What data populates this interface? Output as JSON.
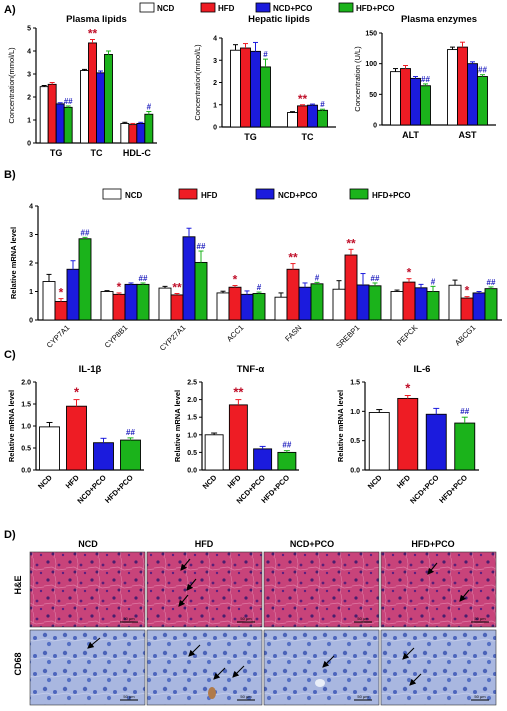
{
  "colors": {
    "NCD": "#ffffff",
    "HFD": "#ee1c24",
    "NCD+PCO": "#1b1bdd",
    "HFD+PCO": "#1bb31b"
  },
  "panel_letters": {
    "A": "A)",
    "B": "B)",
    "C": "C)",
    "D": "D)"
  },
  "legend": [
    "NCD",
    "HFD",
    "NCD+PCO",
    "HFD+PCO"
  ],
  "chart_data": [
    {
      "id": "plasma_lipids",
      "type": "bar",
      "title": "Plasma lipids",
      "ylabel": "Concentration(mmol/L)",
      "categories": [
        "TG",
        "TC",
        "HDL-C"
      ],
      "ylim": [
        0,
        5
      ],
      "yticks": [
        0,
        1,
        2,
        3,
        4,
        5
      ],
      "series": [
        {
          "name": "NCD",
          "values": [
            2.45,
            3.15,
            0.85
          ],
          "errors": [
            0.05,
            0.05,
            0.05
          ]
        },
        {
          "name": "HFD",
          "values": [
            2.55,
            4.35,
            0.8
          ],
          "errors": [
            0.08,
            0.15,
            0.05
          ]
        },
        {
          "name": "NCD+PCO",
          "values": [
            1.7,
            3.05,
            0.85
          ],
          "errors": [
            0.05,
            0.08,
            0.05
          ]
        },
        {
          "name": "HFD+PCO",
          "values": [
            1.55,
            3.85,
            1.25
          ],
          "errors": [
            0.06,
            0.15,
            0.12
          ]
        }
      ],
      "annotations": [
        {
          "category": 0,
          "series": 3,
          "text": "##"
        },
        {
          "category": 1,
          "series": 1,
          "text": "**"
        },
        {
          "category": 2,
          "series": 3,
          "text": "#"
        }
      ]
    },
    {
      "id": "hepatic_lipids",
      "type": "bar",
      "title": "Hepatic lipids",
      "ylabel": "Concentration(mmol/L)",
      "categories": [
        "TG",
        "TC"
      ],
      "ylim": [
        0,
        4
      ],
      "yticks": [
        0,
        1,
        2,
        3,
        4
      ],
      "series": [
        {
          "name": "NCD",
          "values": [
            3.45,
            0.65
          ],
          "errors": [
            0.25,
            0.04
          ]
        },
        {
          "name": "HFD",
          "values": [
            3.55,
            0.95
          ],
          "errors": [
            0.2,
            0.05
          ]
        },
        {
          "name": "NCD+PCO",
          "values": [
            3.4,
            0.98
          ],
          "errors": [
            0.4,
            0.05
          ]
        },
        {
          "name": "HFD+PCO",
          "values": [
            2.7,
            0.75
          ],
          "errors": [
            0.35,
            0.05
          ]
        }
      ],
      "annotations": [
        {
          "category": 0,
          "series": 3,
          "text": "#"
        },
        {
          "category": 1,
          "series": 1,
          "text": "**"
        },
        {
          "category": 1,
          "series": 3,
          "text": "#"
        }
      ]
    },
    {
      "id": "plasma_enzymes",
      "type": "bar",
      "title": "Plasma enzymes",
      "ylabel": "Concentration (U/L)",
      "categories": [
        "ALT",
        "AST"
      ],
      "ylim": [
        0,
        150
      ],
      "yticks": [
        0,
        50,
        100,
        150
      ],
      "series": [
        {
          "name": "NCD",
          "values": [
            87,
            123
          ],
          "errors": [
            5,
            4
          ]
        },
        {
          "name": "HFD",
          "values": [
            92,
            127
          ],
          "errors": [
            5,
            8
          ]
        },
        {
          "name": "NCD+PCO",
          "values": [
            76,
            100
          ],
          "errors": [
            3,
            3
          ]
        },
        {
          "name": "HFD+PCO",
          "values": [
            64,
            79
          ],
          "errors": [
            3,
            3
          ]
        }
      ],
      "annotations": [
        {
          "category": 0,
          "series": 3,
          "text": "##"
        },
        {
          "category": 1,
          "series": 3,
          "text": "##"
        }
      ]
    },
    {
      "id": "relative_mrna",
      "type": "bar",
      "title": "",
      "ylabel": "Relative mRNA level",
      "categories": [
        "CYP7A1",
        "CYP8B1",
        "CYP27A1",
        "ACC1",
        "FASN",
        "SREBP1",
        "PEPCK",
        "ABCG1"
      ],
      "ylim": [
        0,
        4
      ],
      "yticks": [
        0,
        1,
        2,
        3,
        4
      ],
      "series": [
        {
          "name": "NCD",
          "values": [
            1.35,
            1.0,
            1.12,
            0.95,
            0.8,
            1.08,
            1.0,
            1.22
          ],
          "errors": [
            0.25,
            0.03,
            0.06,
            0.06,
            0.15,
            0.3,
            0.05,
            0.18
          ]
        },
        {
          "name": "HFD",
          "values": [
            0.65,
            0.9,
            0.88,
            1.15,
            1.78,
            2.28,
            1.33,
            0.77
          ],
          " errors": [
            0.1,
            0.05,
            0.05,
            0.06,
            0.2,
            0.2,
            0.12,
            0.05
          ]
        },
        {
          "name": "NCD+PCO",
          "values": [
            1.78,
            1.25,
            2.92,
            0.9,
            1.15,
            1.23,
            1.13,
            0.95
          ],
          "errors": [
            0.3,
            0.05,
            0.3,
            0.12,
            0.15,
            0.4,
            0.12,
            0.05
          ]
        },
        {
          "name": "HFD+PCO",
          "values": [
            2.85,
            1.25,
            2.02,
            0.93,
            1.27,
            1.2,
            1.0,
            1.1
          ],
          "errors": [
            0.05,
            0.05,
            0.4,
            0.05,
            0.05,
            0.1,
            0.18,
            0.06
          ]
        }
      ],
      "annotations": [
        {
          "category": 0,
          "series": 1,
          "text": "*"
        },
        {
          "category": 0,
          "series": 3,
          "text": "##"
        },
        {
          "category": 1,
          "series": 1,
          "text": "*"
        },
        {
          "category": 1,
          "series": 3,
          "text": "##"
        },
        {
          "category": 2,
          "series": 1,
          "text": "**"
        },
        {
          "category": 2,
          "series": 3,
          "text": "##"
        },
        {
          "category": 3,
          "series": 1,
          "text": "*"
        },
        {
          "category": 3,
          "series": 3,
          "text": "#"
        },
        {
          "category": 4,
          "series": 1,
          "text": "**"
        },
        {
          "category": 4,
          "series": 3,
          "text": "#"
        },
        {
          "category": 5,
          "series": 1,
          "text": "**"
        },
        {
          "category": 5,
          "series": 3,
          "text": "##"
        },
        {
          "category": 6,
          "series": 1,
          "text": "*"
        },
        {
          "category": 6,
          "series": 3,
          "text": "#"
        },
        {
          "category": 7,
          "series": 1,
          "text": "*"
        },
        {
          "category": 7,
          "series": 3,
          "text": "##"
        }
      ]
    },
    {
      "id": "il1b",
      "type": "bar",
      "title": "IL-1β",
      "ylabel": "Relative mRNA level",
      "categories": [
        "NCD",
        "HFD",
        "NCD+PCO",
        "HFD+PCO"
      ],
      "ylim": [
        0,
        2.0
      ],
      "yticks": [
        0.0,
        0.5,
        1.0,
        1.5,
        2.0
      ],
      "values": [
        0.98,
        1.45,
        0.62,
        0.68
      ],
      "errors": [
        0.1,
        0.15,
        0.1,
        0.05
      ],
      "annotations": [
        {
          "index": 1,
          "text": "*"
        },
        {
          "index": 3,
          "text": "##"
        }
      ]
    },
    {
      "id": "tnfa",
      "type": "bar",
      "title": "TNF-α",
      "ylabel": "Relative mRNA level",
      "categories": [
        "NCD",
        "HFD",
        "NCD+PCO",
        "HFD+PCO"
      ],
      "ylim": [
        0,
        2.5
      ],
      "yticks": [
        0.0,
        0.5,
        1.0,
        1.5,
        2.0,
        2.5
      ],
      "values": [
        1.0,
        1.85,
        0.6,
        0.5
      ],
      "errors": [
        0.05,
        0.15,
        0.07,
        0.05
      ],
      "annotations": [
        {
          "index": 1,
          "text": "**"
        },
        {
          "index": 3,
          "text": "##"
        }
      ]
    },
    {
      "id": "il6",
      "type": "bar",
      "title": "IL-6",
      "ylabel": "Relative mRNA level",
      "categories": [
        "NCD",
        "HFD",
        "NCD+PCO",
        "HFD+PCO"
      ],
      "ylim": [
        0,
        1.5
      ],
      "yticks": [
        0.0,
        0.5,
        1.0,
        1.5
      ],
      "values": [
        0.98,
        1.22,
        0.95,
        0.8
      ],
      "errors": [
        0.05,
        0.05,
        0.1,
        0.1
      ],
      "annotations": [
        {
          "index": 1,
          "text": "*"
        },
        {
          "index": 3,
          "text": "##"
        }
      ]
    }
  ],
  "histology": {
    "columns": [
      "NCD",
      "HFD",
      "NCD+PCO",
      "HFD+PCO"
    ],
    "rows": [
      {
        "label": "H&E"
      },
      {
        "label": "CD68"
      }
    ],
    "scale_bar": "50 μm"
  }
}
